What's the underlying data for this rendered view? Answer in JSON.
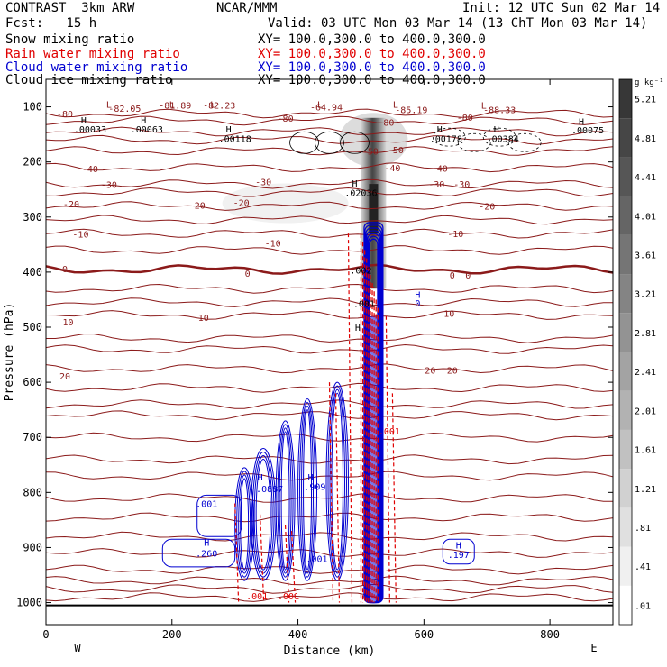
{
  "header": {
    "model": "CONTRAST  3km ARW",
    "center": "NCAR/MMM",
    "init": "Init: 12 UTC Sun 02 Mar 14",
    "fcst": "Fcst:   15 h",
    "valid": "Valid: 03 UTC Mon 03 Mar 14 (13 ChT Mon 03 Mar 14)",
    "legend": [
      {
        "label": "Snow mixing ratio",
        "xy": "XY= 100.0,300.0 to 400.0,300.0",
        "color": "#000000"
      },
      {
        "label": "Rain water mixing ratio",
        "xy": "XY= 100.0,300.0 to 400.0,300.0",
        "color": "#e00000"
      },
      {
        "label": "Cloud water mixing ratio",
        "xy": "XY= 100.0,300.0 to 400.0,300.0",
        "color": "#0000d0"
      },
      {
        "label": "Cloud ice mixing ratio",
        "xy": "XY= 100.0,300.0 to 400.0,300.0",
        "color": "#000000"
      }
    ]
  },
  "chart_data": {
    "type": "contour",
    "xlabel": "Distance (km)",
    "ylabel": "Pressure (hPa)",
    "xlim": [
      0,
      900
    ],
    "ylim": [
      1040,
      50
    ],
    "xticks": [
      0,
      200,
      400,
      600,
      800
    ],
    "yticks": [
      100,
      200,
      300,
      400,
      500,
      600,
      700,
      800,
      900,
      1000
    ],
    "side_labels": {
      "left": "W",
      "right": "E"
    },
    "colorbar": {
      "unit": "g kg⁻¹",
      "levels": [
        ".01",
        ".41",
        ".81",
        "1.21",
        "1.61",
        "2.01",
        "2.41",
        "2.81",
        "3.21",
        "3.61",
        "4.01",
        "4.41",
        "4.81",
        "5.21"
      ]
    },
    "temperature_isotherms": {
      "color": "#8b1a1a",
      "levels": [
        {
          "value": -80,
          "p": 112
        },
        {
          "value": -50,
          "p": 180
        },
        {
          "value": -40,
          "p": 210
        },
        {
          "value": -30,
          "p": 240
        },
        {
          "value": -20,
          "p": 280
        },
        {
          "value": -10,
          "p": 330
        },
        {
          "value": 0,
          "p": 395
        },
        {
          "value": 10,
          "p": 478
        },
        {
          "value": 20,
          "p": 575
        }
      ],
      "labels": [
        {
          "text": "-80",
          "x": 30,
          "p": 112
        },
        {
          "text": "-80",
          "x": 380,
          "p": 120
        },
        {
          "text": "-80",
          "x": 665,
          "p": 119
        },
        {
          "text": "-80",
          "x": 540,
          "p": 128
        },
        {
          "text": "-50",
          "x": 555,
          "p": 178
        },
        {
          "text": "-50",
          "x": 515,
          "p": 180
        },
        {
          "text": "-40",
          "x": 70,
          "p": 212
        },
        {
          "text": "-40",
          "x": 550,
          "p": 210
        },
        {
          "text": "-40",
          "x": 625,
          "p": 211
        },
        {
          "text": "-30",
          "x": 100,
          "p": 241
        },
        {
          "text": "-30",
          "x": 345,
          "p": 236
        },
        {
          "text": "-30",
          "x": 620,
          "p": 240
        },
        {
          "text": "-30",
          "x": 660,
          "p": 240
        },
        {
          "text": "-20",
          "x": 40,
          "p": 276
        },
        {
          "text": "-20",
          "x": 240,
          "p": 278
        },
        {
          "text": "-20",
          "x": 310,
          "p": 273
        },
        {
          "text": "-20",
          "x": 700,
          "p": 280
        },
        {
          "text": "-10",
          "x": 55,
          "p": 331
        },
        {
          "text": "-10",
          "x": 360,
          "p": 347
        },
        {
          "text": "-10",
          "x": 650,
          "p": 330
        },
        {
          "text": "0",
          "x": 30,
          "p": 394
        },
        {
          "text": "0",
          "x": 320,
          "p": 402
        },
        {
          "text": "0",
          "x": 645,
          "p": 405
        },
        {
          "text": "0",
          "x": 670,
          "p": 405
        },
        {
          "text": "10",
          "x": 250,
          "p": 482
        },
        {
          "text": "10",
          "x": 35,
          "p": 490
        },
        {
          "text": "10",
          "x": 640,
          "p": 475
        },
        {
          "text": "20",
          "x": 30,
          "p": 588
        },
        {
          "text": "20",
          "x": 610,
          "p": 578
        },
        {
          "text": "20",
          "x": 645,
          "p": 578
        }
      ]
    },
    "extrema_labels": [
      {
        "text": "L",
        "x": 100,
        "p": 95,
        "color": "#8b1a1a"
      },
      {
        "text": "-82.05",
        "x": 125,
        "p": 102,
        "color": "#8b1a1a"
      },
      {
        "text": "L",
        "x": 200,
        "p": 95,
        "color": "#8b1a1a"
      },
      {
        "text": "-81.89",
        "x": 205,
        "p": 97,
        "color": "#8b1a1a"
      },
      {
        "text": "L",
        "x": 265,
        "p": 95,
        "color": "#8b1a1a"
      },
      {
        "text": "-82.23",
        "x": 275,
        "p": 97,
        "color": "#8b1a1a"
      },
      {
        "text": "L",
        "x": 435,
        "p": 95,
        "color": "#8b1a1a"
      },
      {
        "text": "-64.94",
        "x": 445,
        "p": 100,
        "color": "#8b1a1a"
      },
      {
        "text": "L",
        "x": 555,
        "p": 95,
        "color": "#8b1a1a"
      },
      {
        "text": "-85.19",
        "x": 580,
        "p": 105,
        "color": "#8b1a1a"
      },
      {
        "text": "L",
        "x": 695,
        "p": 97,
        "color": "#8b1a1a"
      },
      {
        "text": "-88.33",
        "x": 720,
        "p": 105,
        "color": "#8b1a1a"
      },
      {
        "text": "H",
        "x": 60,
        "p": 124,
        "color": "#000000"
      },
      {
        "text": ".00033",
        "x": 70,
        "p": 140,
        "color": "#000000"
      },
      {
        "text": "H",
        "x": 155,
        "p": 124,
        "color": "#000000"
      },
      {
        "text": ".00063",
        "x": 160,
        "p": 140,
        "color": "#000000"
      },
      {
        "text": "H",
        "x": 290,
        "p": 140,
        "color": "#000000"
      },
      {
        "text": ".00118",
        "x": 300,
        "p": 157,
        "color": "#000000"
      },
      {
        "text": "H",
        "x": 625,
        "p": 140,
        "color": "#000000"
      },
      {
        "text": ".00178",
        "x": 635,
        "p": 157,
        "color": "#000000"
      },
      {
        "text": "H",
        "x": 715,
        "p": 140,
        "color": "#000000"
      },
      {
        "text": ".00384",
        "x": 725,
        "p": 157,
        "color": "#000000"
      },
      {
        "text": "H",
        "x": 850,
        "p": 126,
        "color": "#000000"
      },
      {
        "text": ".00075",
        "x": 860,
        "p": 142,
        "color": "#000000"
      },
      {
        "text": "H",
        "x": 490,
        "p": 238,
        "color": "#000000"
      },
      {
        "text": ".02036",
        "x": 500,
        "p": 255,
        "color": "#000000"
      },
      {
        "text": ".002",
        "x": 500,
        "p": 396,
        "color": "#000000"
      },
      {
        "text": ".001",
        "x": 505,
        "p": 457,
        "color": "#000000"
      },
      {
        "text": "H",
        "x": 495,
        "p": 500,
        "color": "#000000"
      },
      {
        "text": "H",
        "x": 590,
        "p": 440,
        "color": "#0000d0"
      },
      {
        "text": "0",
        "x": 590,
        "p": 456,
        "color": "#0000d0"
      },
      {
        "text": "H",
        "x": 340,
        "p": 772,
        "color": "#0000d0"
      },
      {
        "text": ".0887",
        "x": 355,
        "p": 793,
        "color": "#0000d0"
      },
      {
        "text": "H",
        "x": 420,
        "p": 772,
        "color": "#0000d0"
      },
      {
        "text": ".909",
        "x": 427,
        "p": 789,
        "color": "#0000d0"
      },
      {
        "text": ".001",
        "x": 255,
        "p": 820,
        "color": "#0000d0"
      },
      {
        "text": "H",
        "x": 255,
        "p": 890,
        "color": "#0000d0"
      },
      {
        "text": ".260",
        "x": 255,
        "p": 910,
        "color": "#0000d0"
      },
      {
        "text": ".001",
        "x": 335,
        "p": 988,
        "color": "#e00000"
      },
      {
        "text": ".001",
        "x": 385,
        "p": 988,
        "color": "#e00000"
      },
      {
        "text": ".001",
        "x": 545,
        "p": 688,
        "color": "#e00000"
      },
      {
        "text": ".001",
        "x": 430,
        "p": 920,
        "color": "#0000d0"
      },
      {
        "text": "H",
        "x": 655,
        "p": 895,
        "color": "#0000d0"
      },
      {
        "text": ".197",
        "x": 655,
        "p": 912,
        "color": "#0000d0"
      }
    ],
    "cloud_ice_shading_max": 5.21,
    "rain_contour_color": "#e00000",
    "cloud_water_contour_color": "#0000d0",
    "surface_p": 1005
  }
}
